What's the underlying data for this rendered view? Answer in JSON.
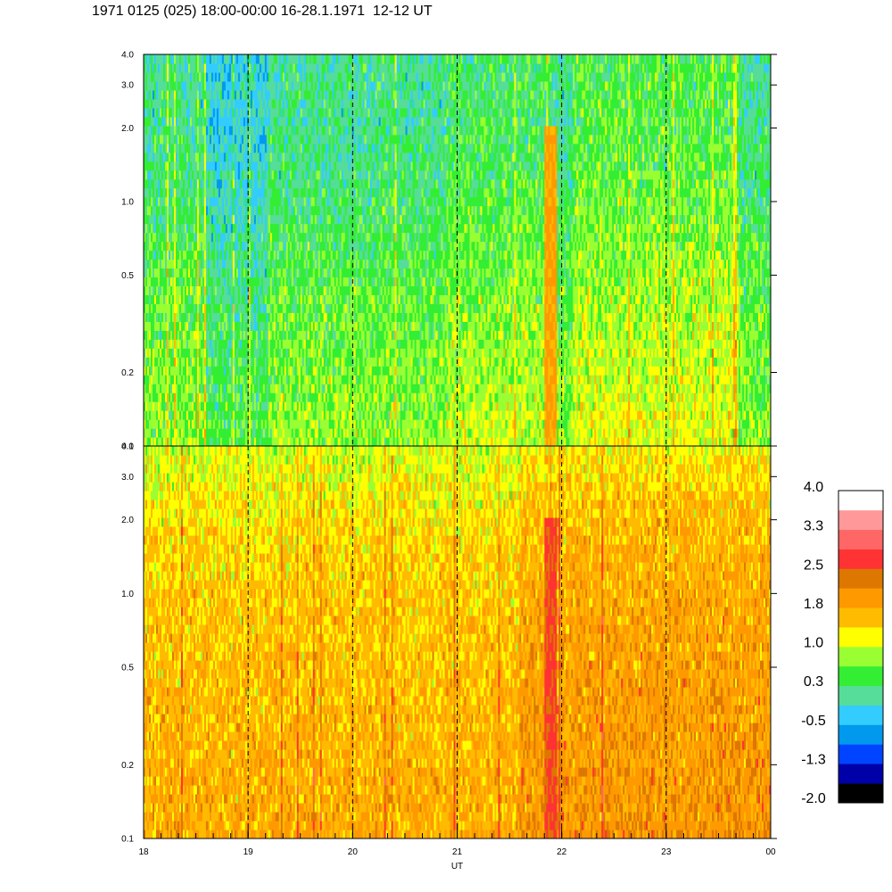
{
  "title": "1971 0125 (025) 18:00-00:00 16-28.1.1971  12-12 UT",
  "chart_data": {
    "type": "heatmap",
    "x_axis": {
      "label": "UT",
      "range": [
        18,
        24
      ],
      "major_ticks": [
        {
          "value": 18,
          "label": "18"
        },
        {
          "value": 19,
          "label": "19"
        },
        {
          "value": 20,
          "label": "20"
        },
        {
          "value": 21,
          "label": "21"
        },
        {
          "value": 22,
          "label": "22"
        },
        {
          "value": 23,
          "label": "23"
        },
        {
          "value": 24,
          "label": "00"
        }
      ],
      "minor_step": 0.1667
    },
    "y_axis": {
      "scale": "log",
      "range": [
        0.1,
        4.0
      ],
      "ticks": [
        {
          "value": 0.1,
          "label": "0.1"
        },
        {
          "value": 0.2,
          "label": "0.2"
        },
        {
          "value": 0.5,
          "label": "0.5"
        },
        {
          "value": 1.0,
          "label": "1.0"
        },
        {
          "value": 2.0,
          "label": "2.0"
        },
        {
          "value": 3.0,
          "label": "3.0"
        },
        {
          "value": 4.0,
          "label": "4.0"
        }
      ]
    },
    "dashed_vertical_lines_at": [
      19,
      20,
      21,
      22,
      23
    ],
    "panels": [
      {
        "id": "upper",
        "dominant_levels": "-1.3 to 1.0",
        "profile_low_to_high_freq": [
          0.45,
          0.3,
          0.1,
          -0.2,
          -0.4,
          -0.45
        ],
        "events": [
          {
            "x": 21.9,
            "level": 1.8
          }
        ]
      },
      {
        "id": "lower",
        "dominant_levels": "1.0 to 2.5",
        "profile_low_to_high_freq": [
          1.75,
          1.65,
          1.55,
          1.45,
          1.25,
          0.8
        ],
        "events": [
          {
            "x": 21.9,
            "level": 2.8
          }
        ]
      }
    ],
    "colorbar": {
      "levels": [
        {
          "color": "#000000"
        },
        {
          "color": "#0000a8"
        },
        {
          "color": "#0044ff"
        },
        {
          "color": "#0099ee"
        },
        {
          "color": "#33ccff"
        },
        {
          "color": "#55dd99"
        },
        {
          "color": "#33ee33"
        },
        {
          "color": "#99ff33"
        },
        {
          "color": "#ffff00"
        },
        {
          "color": "#ffbb00"
        },
        {
          "color": "#ff9900"
        },
        {
          "color": "#dd7700"
        },
        {
          "color": "#ff3333"
        },
        {
          "color": "#ff6666"
        },
        {
          "color": "#ff9999"
        },
        {
          "color": "#ffffff"
        }
      ],
      "labels": [
        "-2.0",
        "-1.3",
        "-0.5",
        "0.3",
        "1.0",
        "1.8",
        "2.5",
        "3.3",
        "4.0"
      ]
    }
  }
}
